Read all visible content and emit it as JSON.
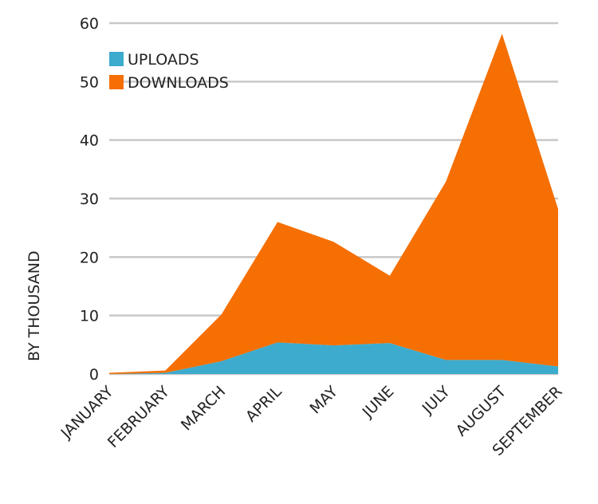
{
  "chart_data": {
    "type": "area",
    "stacked": true,
    "title": "",
    "xlabel": "",
    "ylabel": "BY THOUSAND",
    "ylim": [
      0,
      60
    ],
    "yticks": [
      0,
      10,
      20,
      30,
      40,
      50,
      60
    ],
    "grid": true,
    "legend_position": "top-left",
    "categories": [
      "JANUARY",
      "FEBRUARY",
      "MARCH",
      "APRIL",
      "MAY",
      "JUNE",
      "JULY",
      "AUGUST",
      "SEPTEMBER"
    ],
    "series": [
      {
        "name": "UPLOADS",
        "color": "#3dabcd",
        "values": [
          0,
          0.2,
          2.2,
          5.4,
          4.9,
          5.3,
          2.4,
          2.4,
          1.3
        ]
      },
      {
        "name": "DOWNLOADS",
        "color": "#f56f02",
        "values": [
          0.2,
          0.4,
          8.0,
          20.6,
          17.7,
          11.5,
          30.5,
          55.8,
          26.9
        ]
      }
    ]
  }
}
